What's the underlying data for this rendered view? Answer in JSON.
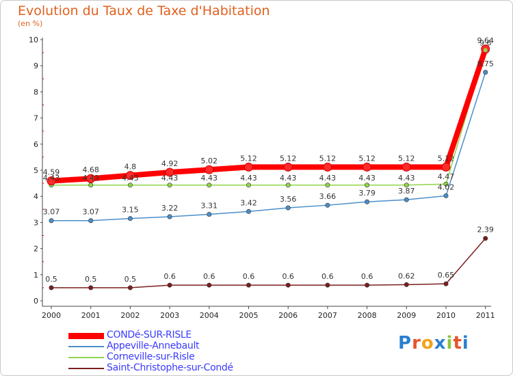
{
  "chart_data": {
    "type": "line",
    "title": "Evolution du Taux de Taxe d'Habitation",
    "subtitle": "(en %)",
    "xlabel": "",
    "ylabel": "",
    "x": [
      "2000",
      "2001",
      "2002",
      "2003",
      "2004",
      "2005",
      "2006",
      "2007",
      "2008",
      "2009",
      "2010",
      "2011"
    ],
    "ylim": [
      0,
      10
    ],
    "yticks": [
      "0",
      "1",
      "2",
      "3",
      "4",
      "5",
      "6",
      "7",
      "8",
      "9",
      "10"
    ],
    "grid": false,
    "legend_position": "bottom-left",
    "series": [
      {
        "name": "CONDé-SUR-RISLE",
        "color": "#ff0000",
        "values": [
          4.59,
          4.68,
          4.8,
          4.92,
          5.02,
          5.12,
          5.12,
          5.12,
          5.12,
          5.12,
          5.12,
          9.64
        ],
        "labels": [
          "4.59",
          "4.68",
          "4.8",
          "4.92",
          "5.02",
          "5.12",
          "5.12",
          "5.12",
          "5.12",
          "5.12",
          "5.12",
          "9.64"
        ]
      },
      {
        "name": "Appeville-Annebault",
        "color": "#4a8ec9",
        "values": [
          3.07,
          3.07,
          3.15,
          3.22,
          3.31,
          3.42,
          3.56,
          3.66,
          3.79,
          3.87,
          4.02,
          8.75
        ],
        "labels": [
          "3.07",
          "3.07",
          "3.15",
          "3.22",
          "3.31",
          "3.42",
          "3.56",
          "3.66",
          "3.79",
          "3.87",
          "4.02",
          "8.75"
        ]
      },
      {
        "name": "Corneville-sur-Risle",
        "color": "#8fd44a",
        "values": [
          4.43,
          4.43,
          4.43,
          4.43,
          4.43,
          4.43,
          4.43,
          4.43,
          4.43,
          4.43,
          4.47,
          9.6
        ],
        "labels": [
          "4.43",
          "4.43",
          "4.43",
          "4.43",
          "4.43",
          "4.43",
          "4.43",
          "4.43",
          "4.43",
          "4.43",
          "4.47",
          "9.6"
        ]
      },
      {
        "name": "Saint-Christophe-sur-Condé",
        "color": "#7a1e1e",
        "values": [
          0.5,
          0.5,
          0.5,
          0.6,
          0.6,
          0.6,
          0.6,
          0.6,
          0.6,
          0.62,
          0.65,
          2.39
        ],
        "labels": [
          "0.5",
          "0.5",
          "0.5",
          "0.6",
          "0.6",
          "0.6",
          "0.6",
          "0.6",
          "0.6",
          "0.62",
          "0.65",
          "2.39"
        ]
      }
    ]
  },
  "brand": {
    "letters": [
      "P",
      "r",
      "o",
      "x",
      "i",
      "t",
      "i"
    ],
    "colors": [
      "#2b7fd0",
      "#e7542a",
      "#f2a21b",
      "#2b7fd0",
      "#8cc63f",
      "#e7542a",
      "#2b7fd0"
    ]
  }
}
